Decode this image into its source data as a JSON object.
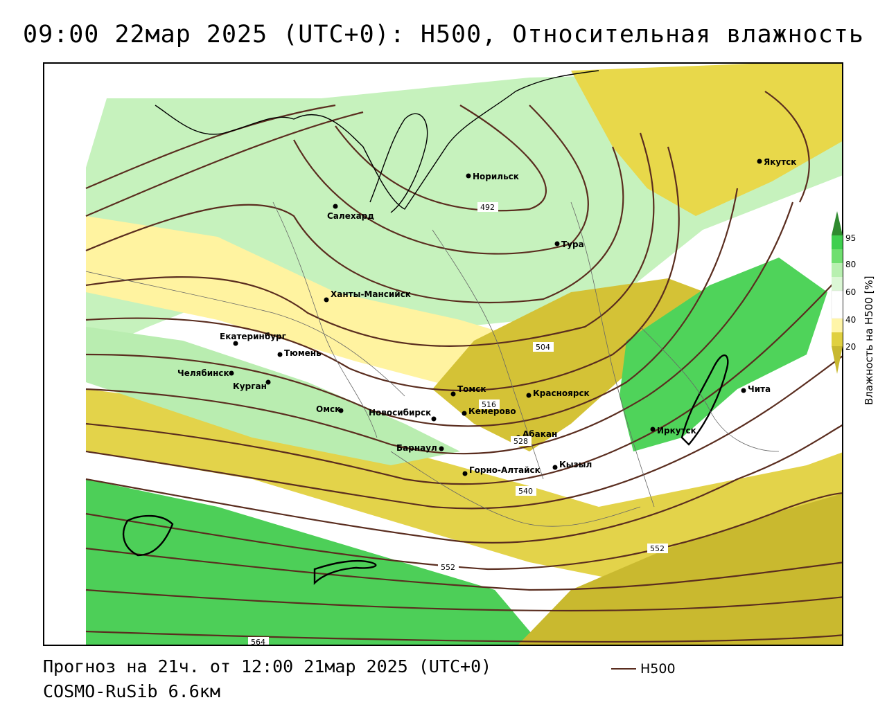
{
  "header": {
    "title": "09:00 22мар 2025 (UTC+0): H500, Относительная влажность"
  },
  "footer": {
    "forecast": "Прогноз на 21ч. от 12:00 21мар 2025 (UTC+0)",
    "model": "COSMO-RuSib 6.6км"
  },
  "legend": {
    "line_label": "H500",
    "line_color": "#5a2d1f"
  },
  "colorbar": {
    "title": "Влажность на H500 [%]",
    "ticks": [
      "95",
      "80",
      "60",
      "40",
      "20"
    ],
    "colors": {
      "dark_green": "#2f8a2f",
      "green": "#3fcf4f",
      "light_green": "#b8f0b0",
      "white": "#ffffff",
      "light_yellow": "#fff5a8",
      "yellow": "#e0d040",
      "olive": "#c8b830"
    }
  },
  "cities": [
    {
      "name": "Норильск"
    },
    {
      "name": "Салехард"
    },
    {
      "name": "Тура"
    },
    {
      "name": "Якутск"
    },
    {
      "name": "Ханты-Мансийск"
    },
    {
      "name": "Екатеринбург"
    },
    {
      "name": "Тюмень"
    },
    {
      "name": "Челябинск"
    },
    {
      "name": "Курган"
    },
    {
      "name": "Омск"
    },
    {
      "name": "Новосибирск"
    },
    {
      "name": "Томск"
    },
    {
      "name": "Кемерово"
    },
    {
      "name": "Красноярск"
    },
    {
      "name": "Абакан"
    },
    {
      "name": "Барнаул"
    },
    {
      "name": "Горно-Алтайск"
    },
    {
      "name": "Кызыл"
    },
    {
      "name": "Иркутск"
    },
    {
      "name": "Чита"
    }
  ],
  "isoline_labels": [
    "492",
    "504",
    "516",
    "528",
    "540",
    "552",
    "552",
    "564"
  ]
}
